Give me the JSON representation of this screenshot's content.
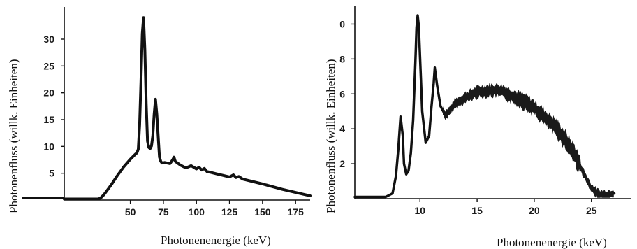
{
  "chart_data": [
    {
      "type": "line",
      "title": "",
      "xlabel": "Photonenenergie (keV)",
      "ylabel": "Photonenfluss (willk. Einheiten)",
      "xlim": [
        0,
        186
      ],
      "ylim": [
        0,
        36
      ],
      "xticks": [
        50,
        75,
        100,
        125,
        150,
        175
      ],
      "yticks": [
        5,
        10,
        15,
        20,
        25,
        30
      ],
      "grid": false,
      "series": [
        {
          "x": [
            0,
            26,
            28,
            30,
            33,
            36,
            40,
            45,
            50,
            54,
            55,
            56,
            57,
            58,
            59,
            60,
            61,
            62,
            63,
            64,
            65,
            66,
            67,
            68,
            69,
            70,
            71,
            72,
            73,
            74,
            76,
            80,
            82,
            83,
            84,
            88,
            92,
            94,
            96,
            100,
            102,
            104,
            106,
            108,
            110,
            115,
            120,
            125,
            128,
            130,
            132,
            135,
            150,
            165,
            186
          ],
          "y": [
            0.2,
            0.2,
            0.5,
            1.0,
            2.0,
            3.0,
            4.5,
            6.2,
            7.6,
            8.6,
            8.8,
            9.5,
            14,
            22,
            31,
            34,
            28,
            18,
            11,
            9.8,
            9.6,
            10.1,
            12,
            16,
            18.8,
            16,
            12,
            8,
            7.2,
            6.9,
            7.0,
            6.8,
            7.5,
            8.0,
            7.2,
            6.5,
            6.0,
            6.2,
            6.4,
            5.8,
            6.1,
            5.6,
            5.9,
            5.3,
            5.2,
            4.9,
            4.6,
            4.3,
            4.7,
            4.2,
            4.4,
            3.9,
            3.0,
            2.0,
            0.8
          ]
        }
      ]
    },
    {
      "type": "line",
      "title": "",
      "xlabel": "Photonenenergie (keV)",
      "ylabel": "Photonenfluss (willk. Einheiten)",
      "xlim": [
        4.3,
        28.5
      ],
      "ylim": [
        0,
        10.9
      ],
      "xticks": [
        10,
        15,
        20,
        25
      ],
      "yticks": [
        2,
        4,
        6,
        8
      ],
      "ytick_top_label": "0",
      "grid": false,
      "series": [
        {
          "x": [
            4.3,
            7.0,
            7.6,
            7.9,
            8.1,
            8.3,
            8.5,
            8.6,
            8.8,
            9.0,
            9.2,
            9.4,
            9.6,
            9.7,
            9.8,
            9.9,
            10.0,
            10.2,
            10.5,
            10.8,
            11.0,
            11.2,
            11.3,
            11.5,
            11.8,
            12.2,
            12.6,
            13.0,
            14.0,
            15.0,
            16.0,
            17.0,
            18.0,
            19.0,
            20.0,
            21.0,
            22.0,
            23.0,
            23.5,
            24.0,
            24.5,
            25.0,
            25.5,
            26.0,
            27.0
          ],
          "y": [
            0.1,
            0.1,
            0.3,
            1.3,
            2.8,
            4.7,
            3.6,
            2.0,
            1.4,
            1.6,
            2.6,
            4.5,
            7.8,
            9.8,
            10.5,
            9.9,
            8.2,
            5.0,
            3.2,
            3.6,
            5.2,
            6.6,
            7.5,
            6.5,
            5.3,
            4.8,
            5.0,
            5.4,
            5.8,
            6.1,
            6.2,
            6.2,
            5.9,
            5.6,
            5.2,
            4.6,
            4.0,
            3.1,
            2.6,
            1.9,
            1.2,
            0.6,
            0.3,
            0.2,
            0.3
          ]
        }
      ]
    }
  ]
}
